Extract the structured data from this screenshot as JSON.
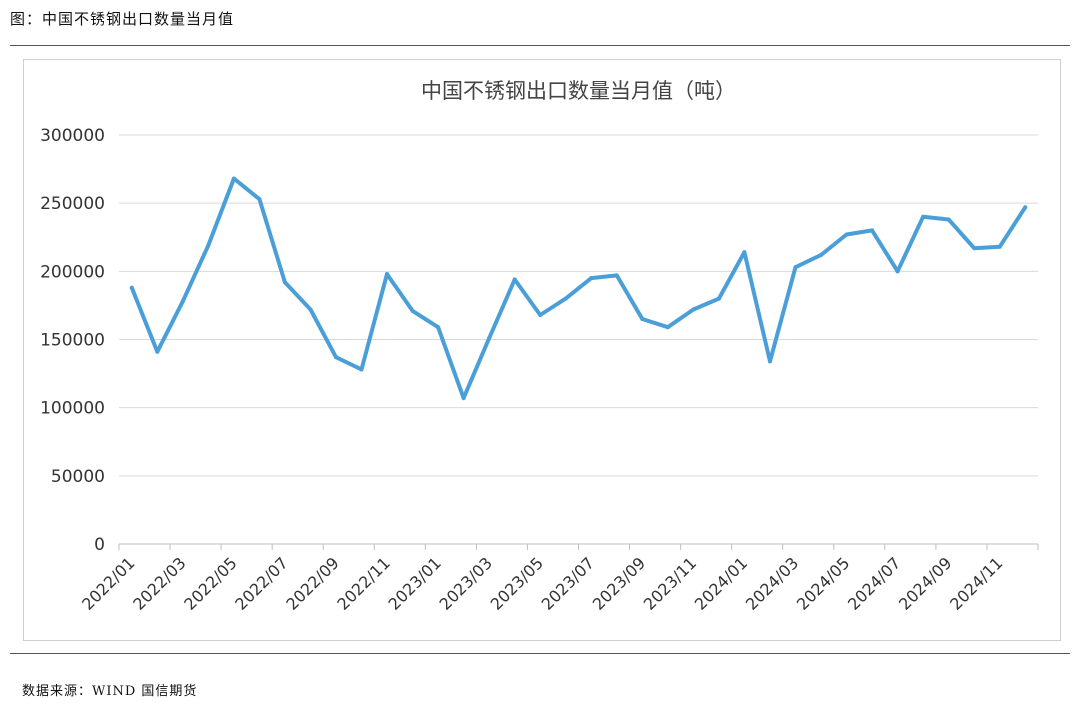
{
  "figure": {
    "caption": "图：中国不锈钢出口数量当月值",
    "source": "数据来源：WIND 国信期货"
  },
  "colors": {
    "line": "#4a9fd8",
    "grid": "#d9d9d9",
    "axis": "#bfbfbf",
    "text": "#333333"
  },
  "chart_data": {
    "type": "line",
    "title": "中国不锈钢出口数量当月值（吨）",
    "xlabel": "",
    "ylabel": "",
    "ylim": [
      0,
      300000
    ],
    "yticks": [
      0,
      50000,
      100000,
      150000,
      200000,
      250000,
      300000
    ],
    "ytick_labels": [
      "0",
      "50000",
      "100000",
      "150000",
      "200000",
      "250000",
      "300000"
    ],
    "grid": true,
    "x": [
      "2022/01",
      "2022/02",
      "2022/03",
      "2022/04",
      "2022/05",
      "2022/06",
      "2022/07",
      "2022/08",
      "2022/09",
      "2022/10",
      "2022/11",
      "2022/12",
      "2023/01",
      "2023/02",
      "2023/03",
      "2023/04",
      "2023/05",
      "2023/06",
      "2023/07",
      "2023/08",
      "2023/09",
      "2023/10",
      "2023/11",
      "2023/12",
      "2024/01",
      "2024/02",
      "2024/03",
      "2024/04",
      "2024/05",
      "2024/06",
      "2024/07",
      "2024/08",
      "2024/09",
      "2024/10",
      "2024/11",
      "2024/12"
    ],
    "xtick_labels": [
      "2022/01",
      "2022/03",
      "2022/05",
      "2022/07",
      "2022/09",
      "2022/11",
      "2023/01",
      "2023/03",
      "2023/05",
      "2023/07",
      "2023/09",
      "2023/11",
      "2024/01",
      "2024/03",
      "2024/05",
      "2024/07",
      "2024/09",
      "2024/11"
    ],
    "series": [
      {
        "values": [
          188000,
          141000,
          178000,
          219000,
          268000,
          253000,
          192000,
          172000,
          137000,
          128000,
          198000,
          171000,
          159000,
          107000,
          151000,
          194000,
          168000,
          180000,
          195000,
          197000,
          165000,
          159000,
          172000,
          180000,
          214000,
          134000,
          203000,
          212000,
          227000,
          230000,
          200000,
          240000,
          238000,
          217000,
          218000,
          247000
        ]
      }
    ]
  }
}
